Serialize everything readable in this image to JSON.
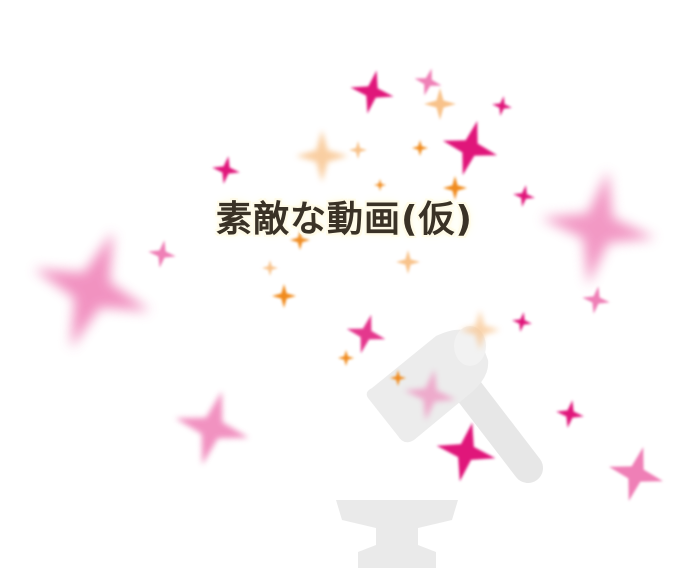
{
  "title": "素敵な動画(仮)",
  "icons": {
    "hammer": "hammer-icon",
    "anvil": "anvil-icon",
    "sparkle": "sparkle-icon"
  },
  "colors": {
    "background": "#ffffff",
    "title_text": "#3a3226",
    "title_glow": "#fffbe8",
    "sparkle_magenta": "#e0157a",
    "sparkle_pink": "#ef7fb6",
    "sparkle_light_pink": "#f3a6cb",
    "sparkle_orange": "#f08a1a",
    "sparkle_peach": "#f8c28a",
    "silhouette": "#e6e6e6"
  }
}
